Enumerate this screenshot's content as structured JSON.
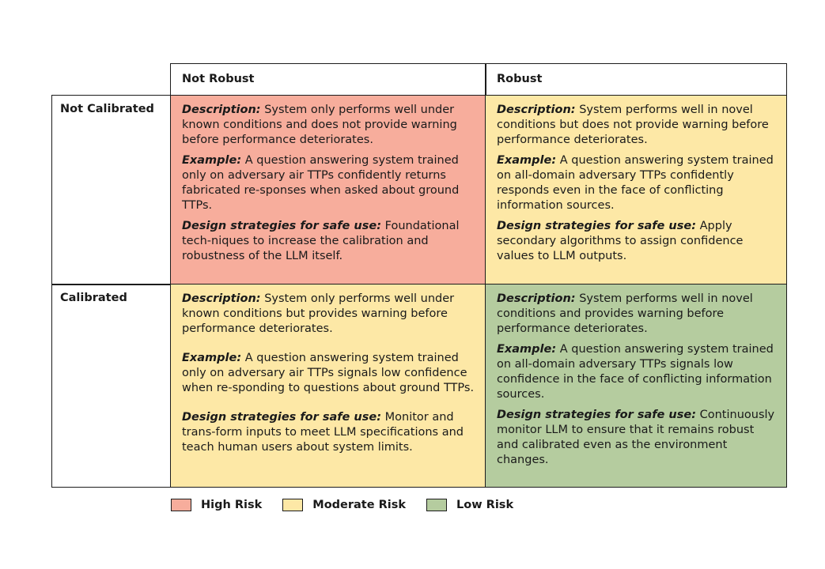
{
  "columns": [
    "Not Robust",
    "Robust"
  ],
  "rows": [
    "Not Calibrated",
    "Calibrated"
  ],
  "cells": {
    "nc_nr": {
      "risk": "High Risk",
      "description_label": "Description:",
      "description": "System only performs well under known conditions and does not provide warning before performance deteriorates.",
      "example_label": "Example:",
      "example": "A question answering system trained only on adversary air TTPs confidently returns fabricated re-sponses when asked about ground TTPs.",
      "strategy_label": "Design strategies for safe use:",
      "strategy": "Foundational tech-niques to increase the calibration and robustness of the LLM itself."
    },
    "nc_r": {
      "risk": "Moderate Risk",
      "description_label": "Description:",
      "description": "System performs well in novel conditions but does not provide warning before performance deteriorates.",
      "example_label": "Example:",
      "example": "A question answering system trained on all-domain adversary TTPs confidently responds even in the face of conflicting information sources.",
      "strategy_label": "Design strategies for safe use:",
      "strategy": "Apply secondary algorithms to assign confidence values to LLM outputs."
    },
    "c_nr": {
      "risk": "Moderate Risk",
      "description_label": "Description:",
      "description": "System only performs well under known conditions but provides warning before performance deteriorates.",
      "example_label": "Example:",
      "example": "A question answering system trained only on adversary air TTPs signals low confidence when re-sponding to questions about ground TTPs.",
      "strategy_label": "Design strategies for safe use:",
      "strategy": "Monitor and trans-form inputs to meet LLM specifications and teach human users about system limits."
    },
    "c_r": {
      "risk": "Low Risk",
      "description_label": "Description:",
      "description": "System performs well in novel conditions and provides warning before performance deteriorates.",
      "example_label": "Example:",
      "example": "A question answering system trained on all-domain adversary TTPs signals low confidence in the face of conflicting information sources.",
      "strategy_label": "Design strategies for safe use:",
      "strategy": "Continuously monitor LLM to ensure that it remains robust and calibrated even as the environment changes."
    }
  },
  "legend": [
    {
      "label": "High Risk",
      "color": "#f7ad9c"
    },
    {
      "label": "Moderate Risk",
      "color": "#fde8a6"
    },
    {
      "label": "Low Risk",
      "color": "#b5cc9f"
    }
  ]
}
